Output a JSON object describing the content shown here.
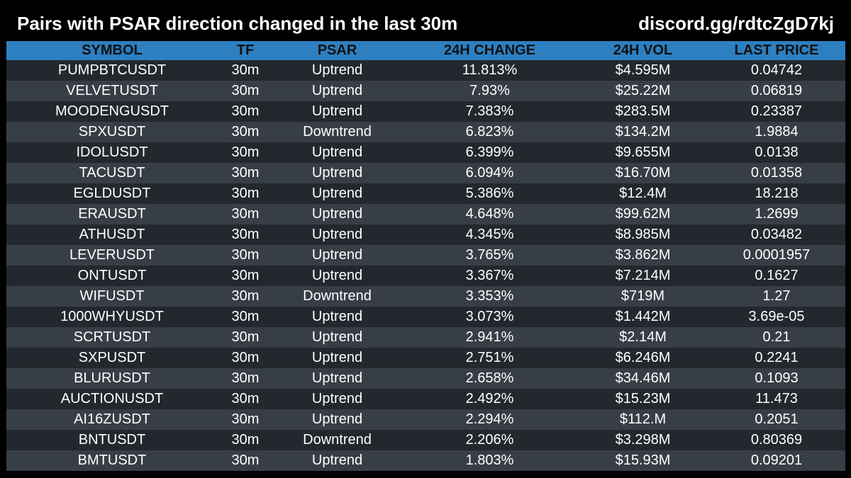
{
  "header": {
    "title": "Pairs with PSAR direction changed in the last 30m",
    "link": "discord.gg/rdtcZgD7kj"
  },
  "colors": {
    "background": "#000000",
    "header_row": "#2d7fc0",
    "row_dark": "#23282e",
    "row_light": "#373e46"
  },
  "table": {
    "columns": [
      "SYMBOL",
      "TF",
      "PSAR",
      "24H CHANGE",
      "24H VOL",
      "LAST PRICE"
    ],
    "rows": [
      [
        "PUMPBTCUSDT",
        "30m",
        "Uptrend",
        "11.813%",
        "$4.595M",
        "0.04742"
      ],
      [
        "VELVETUSDT",
        "30m",
        "Uptrend",
        "7.93%",
        "$25.22M",
        "0.06819"
      ],
      [
        "MOODENGUSDT",
        "30m",
        "Uptrend",
        "7.383%",
        "$283.5M",
        "0.23387"
      ],
      [
        "SPXUSDT",
        "30m",
        "Downtrend",
        "6.823%",
        "$134.2M",
        "1.9884"
      ],
      [
        "IDOLUSDT",
        "30m",
        "Uptrend",
        "6.399%",
        "$9.655M",
        "0.0138"
      ],
      [
        "TACUSDT",
        "30m",
        "Uptrend",
        "6.094%",
        "$16.70M",
        "0.01358"
      ],
      [
        "EGLDUSDT",
        "30m",
        "Uptrend",
        "5.386%",
        "$12.4M",
        "18.218"
      ],
      [
        "ERAUSDT",
        "30m",
        "Uptrend",
        "4.648%",
        "$99.62M",
        "1.2699"
      ],
      [
        "ATHUSDT",
        "30m",
        "Uptrend",
        "4.345%",
        "$8.985M",
        "0.03482"
      ],
      [
        "LEVERUSDT",
        "30m",
        "Uptrend",
        "3.765%",
        "$3.862M",
        "0.0001957"
      ],
      [
        "ONTUSDT",
        "30m",
        "Uptrend",
        "3.367%",
        "$7.214M",
        "0.1627"
      ],
      [
        "WIFUSDT",
        "30m",
        "Downtrend",
        "3.353%",
        "$719M",
        "1.27"
      ],
      [
        "1000WHYUSDT",
        "30m",
        "Uptrend",
        "3.073%",
        "$1.442M",
        "3.69e-05"
      ],
      [
        "SCRTUSDT",
        "30m",
        "Uptrend",
        "2.941%",
        "$2.14M",
        "0.21"
      ],
      [
        "SXPUSDT",
        "30m",
        "Uptrend",
        "2.751%",
        "$6.246M",
        "0.2241"
      ],
      [
        "BLURUSDT",
        "30m",
        "Uptrend",
        "2.658%",
        "$34.46M",
        "0.1093"
      ],
      [
        "AUCTIONUSDT",
        "30m",
        "Uptrend",
        "2.492%",
        "$15.23M",
        "11.473"
      ],
      [
        "AI16ZUSDT",
        "30m",
        "Uptrend",
        "2.294%",
        "$112.M",
        "0.2051"
      ],
      [
        "BNTUSDT",
        "30m",
        "Downtrend",
        "2.206%",
        "$3.298M",
        "0.80369"
      ],
      [
        "BMTUSDT",
        "30m",
        "Uptrend",
        "1.803%",
        "$15.93M",
        "0.09201"
      ]
    ]
  }
}
